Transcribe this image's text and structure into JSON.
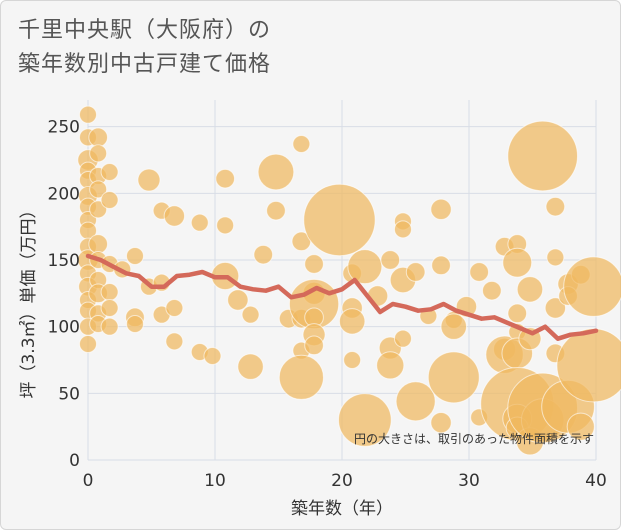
{
  "chart_data": {
    "type": "scatter",
    "title_line1": "千里中央駅（大阪府）の",
    "title_line2": "築年数別中古戸建て価格",
    "xlabel": "築年数（年）",
    "ylabel": "坪（3.3㎡）単価（万円）",
    "xlim": [
      0,
      40
    ],
    "ylim": [
      0,
      270
    ],
    "x_ticks": [
      "0",
      "10",
      "20",
      "30",
      "40"
    ],
    "y_ticks": [
      "0",
      "50",
      "100",
      "150",
      "200",
      "250"
    ],
    "note": "円の大きさは、取引のあった物件面積を示す",
    "grid": true,
    "colors": {
      "bubble": "#f0b860",
      "line": "#d4695a",
      "background": "#f5f5f5"
    },
    "trend_line": {
      "x": [
        0,
        1,
        2,
        3,
        4,
        5,
        6,
        7,
        8,
        9,
        10,
        11,
        12,
        13,
        14,
        15,
        16,
        17,
        18,
        19,
        20,
        21,
        22,
        23,
        24,
        25,
        26,
        27,
        28,
        29,
        30,
        31,
        32,
        33,
        34,
        35,
        36,
        37,
        38,
        39,
        40
      ],
      "y": [
        153,
        150,
        145,
        140,
        138,
        130,
        130,
        138,
        139,
        141,
        137,
        137,
        130,
        128,
        127,
        130,
        122,
        124,
        129,
        125,
        128,
        135,
        123,
        111,
        117,
        115,
        112,
        113,
        117,
        112,
        109,
        106,
        107,
        103,
        99,
        95,
        100,
        91,
        94,
        95,
        97
      ]
    },
    "points": [
      {
        "x": 0,
        "y": 259,
        "s": 1
      },
      {
        "x": 0,
        "y": 242,
        "s": 1
      },
      {
        "x": 0,
        "y": 225,
        "s": 1.2
      },
      {
        "x": 0,
        "y": 217,
        "s": 1
      },
      {
        "x": 0,
        "y": 210,
        "s": 1
      },
      {
        "x": 0,
        "y": 198,
        "s": 1.1
      },
      {
        "x": 0,
        "y": 190,
        "s": 1
      },
      {
        "x": 0,
        "y": 180,
        "s": 1
      },
      {
        "x": 0,
        "y": 172,
        "s": 1
      },
      {
        "x": 0,
        "y": 160,
        "s": 1
      },
      {
        "x": 0,
        "y": 150,
        "s": 1.2
      },
      {
        "x": 0,
        "y": 140,
        "s": 1
      },
      {
        "x": 0,
        "y": 130,
        "s": 1.1
      },
      {
        "x": 0,
        "y": 120,
        "s": 1
      },
      {
        "x": 0,
        "y": 112,
        "s": 1
      },
      {
        "x": 0,
        "y": 100,
        "s": 1
      },
      {
        "x": 0,
        "y": 87,
        "s": 1
      },
      {
        "x": 0.8,
        "y": 242,
        "s": 1.1
      },
      {
        "x": 0.8,
        "y": 230,
        "s": 1
      },
      {
        "x": 0.8,
        "y": 213,
        "s": 1
      },
      {
        "x": 0.8,
        "y": 203,
        "s": 1
      },
      {
        "x": 0.8,
        "y": 188,
        "s": 1
      },
      {
        "x": 0.8,
        "y": 162,
        "s": 1.1
      },
      {
        "x": 0.8,
        "y": 150,
        "s": 1
      },
      {
        "x": 0.8,
        "y": 135,
        "s": 1
      },
      {
        "x": 0.8,
        "y": 125,
        "s": 1.1
      },
      {
        "x": 0.8,
        "y": 110,
        "s": 1
      },
      {
        "x": 0.8,
        "y": 102,
        "s": 1
      },
      {
        "x": 1.7,
        "y": 216,
        "s": 1
      },
      {
        "x": 1.7,
        "y": 195,
        "s": 1
      },
      {
        "x": 1.7,
        "y": 147,
        "s": 1
      },
      {
        "x": 1.7,
        "y": 126,
        "s": 1
      },
      {
        "x": 1.7,
        "y": 114,
        "s": 1
      },
      {
        "x": 1.7,
        "y": 100,
        "s": 1
      },
      {
        "x": 2.7,
        "y": 143,
        "s": 1
      },
      {
        "x": 3.7,
        "y": 107,
        "s": 1.1
      },
      {
        "x": 3.7,
        "y": 102,
        "s": 1
      },
      {
        "x": 3.7,
        "y": 153,
        "s": 1
      },
      {
        "x": 4.8,
        "y": 210,
        "s": 1.3
      },
      {
        "x": 4.8,
        "y": 130,
        "s": 1
      },
      {
        "x": 5.8,
        "y": 187,
        "s": 1
      },
      {
        "x": 5.8,
        "y": 133,
        "s": 1
      },
      {
        "x": 5.8,
        "y": 109,
        "s": 1
      },
      {
        "x": 6.8,
        "y": 183,
        "s": 1.2
      },
      {
        "x": 6.8,
        "y": 114,
        "s": 1
      },
      {
        "x": 6.8,
        "y": 89,
        "s": 1
      },
      {
        "x": 8.8,
        "y": 178,
        "s": 1
      },
      {
        "x": 8.8,
        "y": 81,
        "s": 1
      },
      {
        "x": 9.8,
        "y": 78,
        "s": 1
      },
      {
        "x": 10.8,
        "y": 211,
        "s": 1.1
      },
      {
        "x": 10.8,
        "y": 176,
        "s": 1
      },
      {
        "x": 10.8,
        "y": 138,
        "s": 1.6
      },
      {
        "x": 11.8,
        "y": 120,
        "s": 1.2
      },
      {
        "x": 12.8,
        "y": 109,
        "s": 1
      },
      {
        "x": 12.8,
        "y": 70,
        "s": 1.5
      },
      {
        "x": 13.8,
        "y": 154,
        "s": 1.1
      },
      {
        "x": 14.8,
        "y": 216,
        "s": 2.1
      },
      {
        "x": 14.8,
        "y": 187,
        "s": 1.1
      },
      {
        "x": 15.8,
        "y": 106,
        "s": 1.1
      },
      {
        "x": 16.8,
        "y": 237,
        "s": 1
      },
      {
        "x": 16.8,
        "y": 164,
        "s": 1.1
      },
      {
        "x": 16.8,
        "y": 106,
        "s": 1.1
      },
      {
        "x": 16.8,
        "y": 82,
        "s": 1
      },
      {
        "x": 16.8,
        "y": 62,
        "s": 2.6
      },
      {
        "x": 17.8,
        "y": 147,
        "s": 1.1
      },
      {
        "x": 17.8,
        "y": 125,
        "s": 1.3
      },
      {
        "x": 17.8,
        "y": 117,
        "s": 2.9
      },
      {
        "x": 17.8,
        "y": 107,
        "s": 1.1
      },
      {
        "x": 17.8,
        "y": 94,
        "s": 1.3
      },
      {
        "x": 17.8,
        "y": 86,
        "s": 1.1
      },
      {
        "x": 19.8,
        "y": 180,
        "s": 4.2
      },
      {
        "x": 20.8,
        "y": 140,
        "s": 1.1
      },
      {
        "x": 20.8,
        "y": 114,
        "s": 1.2
      },
      {
        "x": 20.8,
        "y": 104,
        "s": 1.5
      },
      {
        "x": 20.8,
        "y": 75,
        "s": 1
      },
      {
        "x": 21.8,
        "y": 145,
        "s": 2
      },
      {
        "x": 21.8,
        "y": 30,
        "s": 3.1
      },
      {
        "x": 22.8,
        "y": 123,
        "s": 1.2
      },
      {
        "x": 23.8,
        "y": 150,
        "s": 1.1
      },
      {
        "x": 23.8,
        "y": 84,
        "s": 1.3
      },
      {
        "x": 23.8,
        "y": 71,
        "s": 1.6
      },
      {
        "x": 24.8,
        "y": 179,
        "s": 1
      },
      {
        "x": 24.8,
        "y": 173,
        "s": 1
      },
      {
        "x": 24.8,
        "y": 135,
        "s": 1.5
      },
      {
        "x": 24.8,
        "y": 91,
        "s": 1
      },
      {
        "x": 25.8,
        "y": 141,
        "s": 1.1
      },
      {
        "x": 25.8,
        "y": 44,
        "s": 2.3
      },
      {
        "x": 26.8,
        "y": 108,
        "s": 1
      },
      {
        "x": 27.8,
        "y": 188,
        "s": 1.2
      },
      {
        "x": 27.8,
        "y": 146,
        "s": 1.1
      },
      {
        "x": 27.8,
        "y": 28,
        "s": 1.2
      },
      {
        "x": 28.8,
        "y": 105,
        "s": 1
      },
      {
        "x": 28.8,
        "y": 100,
        "s": 1.5
      },
      {
        "x": 28.8,
        "y": 62,
        "s": 3
      },
      {
        "x": 29.8,
        "y": 115,
        "s": 1.2
      },
      {
        "x": 30.8,
        "y": 141,
        "s": 1.1
      },
      {
        "x": 30.8,
        "y": 32,
        "s": 1
      },
      {
        "x": 31.8,
        "y": 127,
        "s": 1.1
      },
      {
        "x": 32.8,
        "y": 83,
        "s": 1.3
      },
      {
        "x": 32.8,
        "y": 79,
        "s": 2.2
      },
      {
        "x": 32.8,
        "y": 160,
        "s": 1.1
      },
      {
        "x": 33.8,
        "y": 162,
        "s": 1.1
      },
      {
        "x": 33.8,
        "y": 148,
        "s": 1.7
      },
      {
        "x": 33.8,
        "y": 110,
        "s": 1.1
      },
      {
        "x": 33.8,
        "y": 96,
        "s": 1
      },
      {
        "x": 33.8,
        "y": 80,
        "s": 1.8
      },
      {
        "x": 33.8,
        "y": 42,
        "s": 4.3
      },
      {
        "x": 33.8,
        "y": 31,
        "s": 1.7
      },
      {
        "x": 33.8,
        "y": 24,
        "s": 1.3
      },
      {
        "x": 34.8,
        "y": 128,
        "s": 1.5
      },
      {
        "x": 34.8,
        "y": 91,
        "s": 1.3
      },
      {
        "x": 34.8,
        "y": 14,
        "s": 1.6
      },
      {
        "x": 35.8,
        "y": 228,
        "s": 4.1
      },
      {
        "x": 35.8,
        "y": 30,
        "s": 2.5
      },
      {
        "x": 35.8,
        "y": 39,
        "s": 4.1
      },
      {
        "x": 36.8,
        "y": 190,
        "s": 1.1
      },
      {
        "x": 36.8,
        "y": 152,
        "s": 1
      },
      {
        "x": 36.8,
        "y": 114,
        "s": 1.2
      },
      {
        "x": 36.8,
        "y": 80,
        "s": 1.1
      },
      {
        "x": 37.8,
        "y": 132,
        "s": 1.2
      },
      {
        "x": 37.8,
        "y": 123,
        "s": 1.1
      },
      {
        "x": 37.8,
        "y": 40,
        "s": 3.1
      },
      {
        "x": 38.8,
        "y": 139,
        "s": 1.1
      },
      {
        "x": 38.8,
        "y": 25,
        "s": 1.6
      },
      {
        "x": 39.8,
        "y": 130,
        "s": 3.5
      },
      {
        "x": 39.8,
        "y": 71,
        "s": 4.3
      }
    ]
  }
}
